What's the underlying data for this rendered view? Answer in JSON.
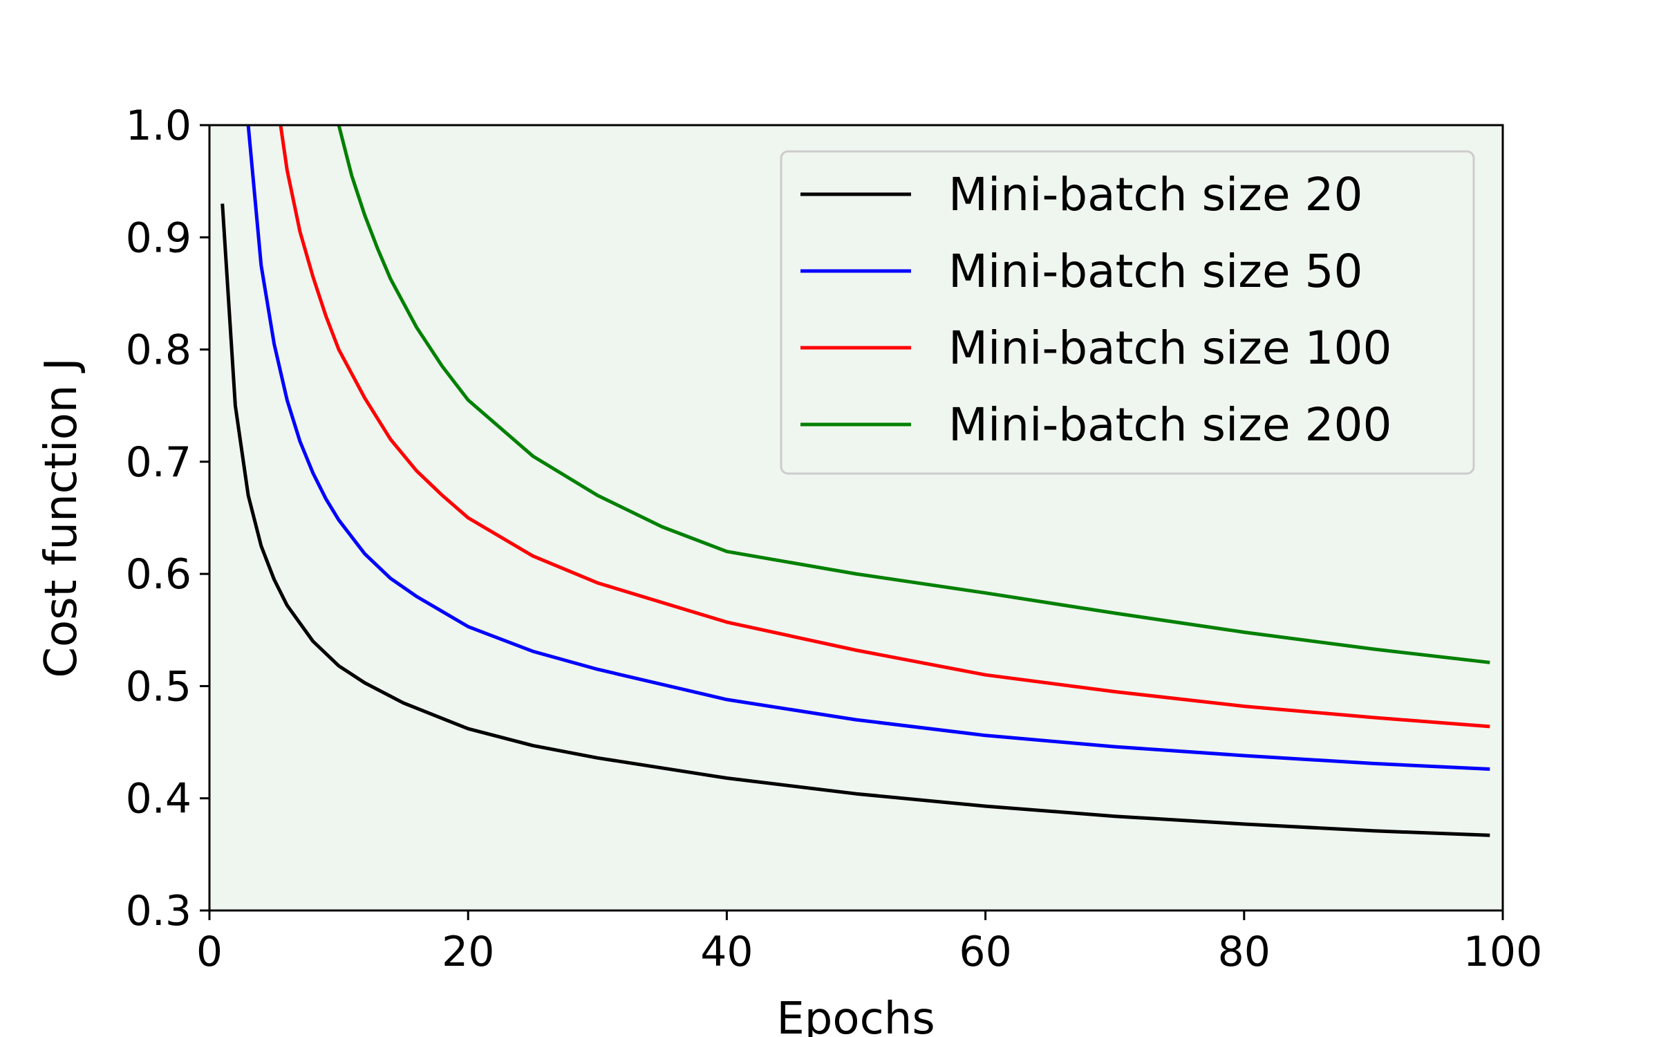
{
  "chart_data": {
    "type": "line",
    "title": "",
    "xlabel": "Epochs",
    "ylabel": "Cost function J",
    "xlim": [
      0,
      100
    ],
    "ylim": [
      0.3,
      1.0
    ],
    "xticks": [
      "0",
      "20",
      "40",
      "60",
      "80",
      "100"
    ],
    "yticks": [
      "0.3",
      "0.4",
      "0.5",
      "0.6",
      "0.7",
      "0.8",
      "0.9",
      "1.0"
    ],
    "grid": false,
    "legend_position": "top-right",
    "plot_background": "#eff5ef",
    "series": [
      {
        "name": "Mini-batch size 20",
        "color": "#000000",
        "x": [
          1,
          2,
          3,
          4,
          5,
          6,
          8,
          10,
          12,
          15,
          20,
          25,
          30,
          40,
          50,
          60,
          70,
          80,
          90,
          99
        ],
        "y": [
          0.93,
          0.75,
          0.67,
          0.625,
          0.595,
          0.572,
          0.54,
          0.518,
          0.503,
          0.485,
          0.462,
          0.447,
          0.436,
          0.418,
          0.404,
          0.393,
          0.384,
          0.377,
          0.371,
          0.367
        ]
      },
      {
        "name": "Mini-batch size 50",
        "color": "#0000ff",
        "x": [
          3,
          4,
          5,
          6,
          7,
          8,
          9,
          10,
          12,
          14,
          16,
          20,
          25,
          30,
          40,
          50,
          60,
          70,
          80,
          90,
          99
        ],
        "y": [
          1.0,
          0.875,
          0.805,
          0.755,
          0.718,
          0.69,
          0.667,
          0.648,
          0.618,
          0.596,
          0.58,
          0.553,
          0.531,
          0.515,
          0.488,
          0.47,
          0.456,
          0.446,
          0.438,
          0.431,
          0.426
        ]
      },
      {
        "name": "Mini-batch size 100",
        "color": "#ff0000",
        "x": [
          5.5,
          6,
          7,
          8,
          9,
          10,
          12,
          14,
          16,
          18,
          20,
          25,
          30,
          40,
          50,
          60,
          70,
          80,
          90,
          99
        ],
        "y": [
          1.0,
          0.96,
          0.905,
          0.865,
          0.83,
          0.8,
          0.757,
          0.72,
          0.692,
          0.67,
          0.65,
          0.616,
          0.592,
          0.557,
          0.532,
          0.51,
          0.495,
          0.482,
          0.472,
          0.464
        ]
      },
      {
        "name": "Mini-batch size 200",
        "color": "#008000",
        "x": [
          10,
          11,
          12,
          13,
          14,
          16,
          18,
          20,
          25,
          30,
          35,
          40,
          50,
          60,
          70,
          80,
          90,
          99
        ],
        "y": [
          1.0,
          0.955,
          0.92,
          0.89,
          0.863,
          0.82,
          0.785,
          0.755,
          0.705,
          0.67,
          0.642,
          0.62,
          0.6,
          0.583,
          0.565,
          0.548,
          0.533,
          0.521
        ]
      }
    ]
  }
}
